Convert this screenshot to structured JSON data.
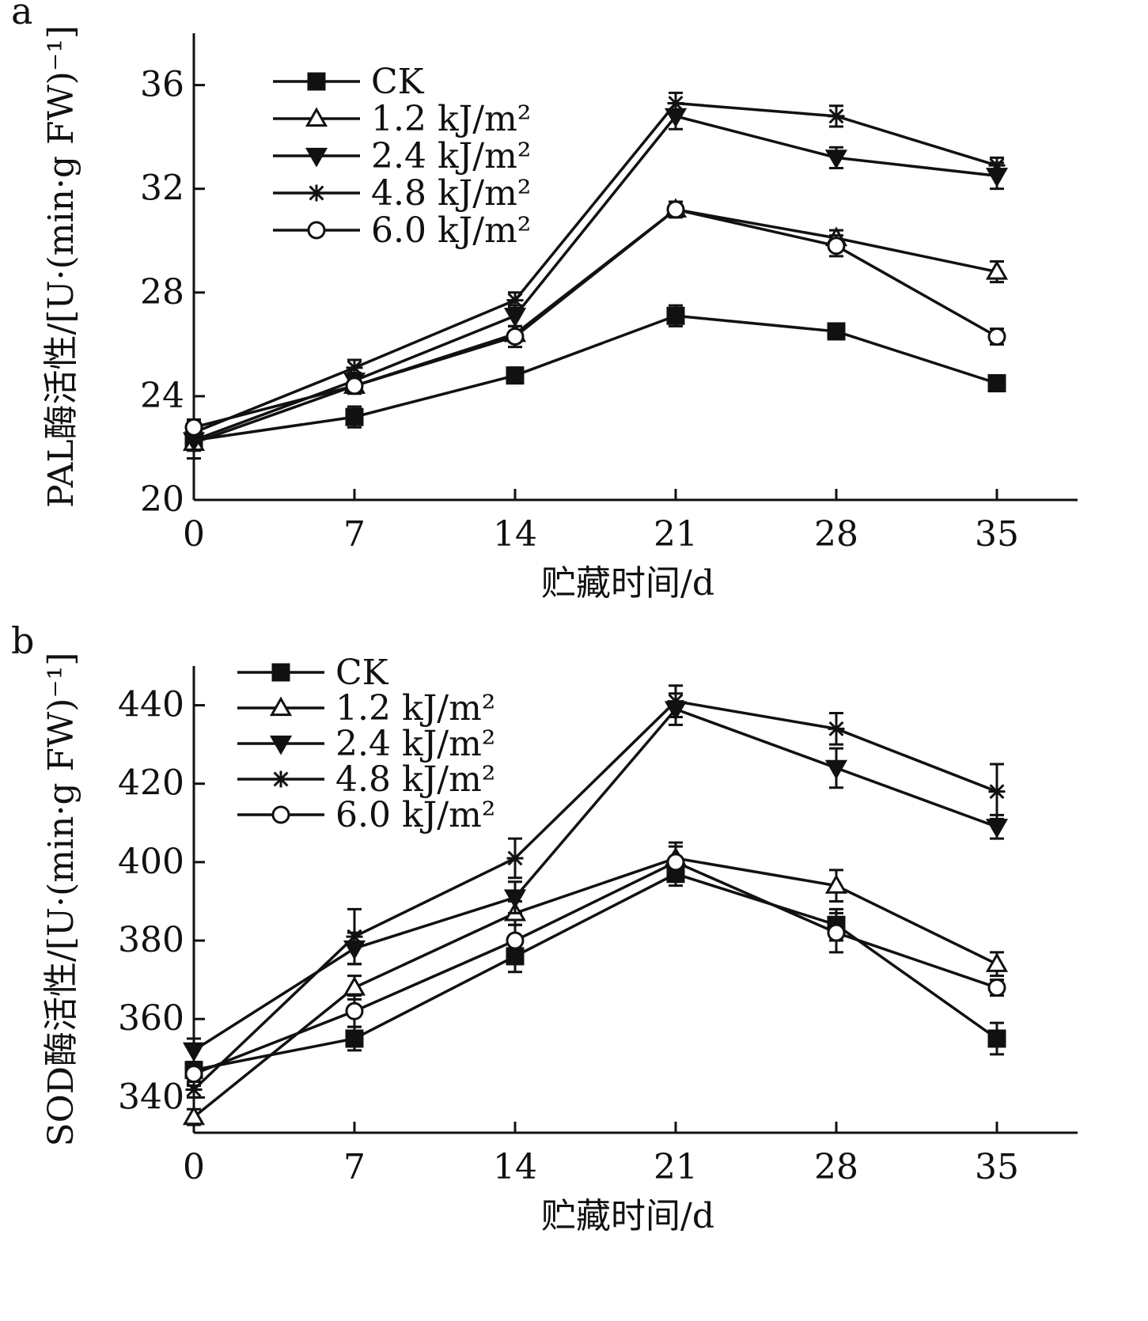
{
  "chart_data": [
    {
      "type": "line",
      "panel_label": "a",
      "xlabel": "贮藏时间/d",
      "ylabel": "PAL酶活性/[U·(min·g FW)⁻¹]",
      "x": [
        0,
        7,
        14,
        21,
        28,
        35
      ],
      "xlim": [
        0,
        38.5
      ],
      "ylim": [
        20,
        38
      ],
      "yticks": [
        20,
        24,
        28,
        32,
        36
      ],
      "grid": false,
      "legend_position": "top-left",
      "series": [
        {
          "name": "CK",
          "marker": "filled-square",
          "values": [
            22.3,
            23.2,
            24.8,
            27.1,
            26.5,
            24.5
          ],
          "errors": [
            0.3,
            0.4,
            0.3,
            0.4,
            0.2,
            0.2
          ]
        },
        {
          "name": "1.2 kJ/m²",
          "marker": "open-triangle",
          "values": [
            22.2,
            24.4,
            26.4,
            31.2,
            30.1,
            28.8
          ],
          "errors": [
            0.3,
            0.3,
            0.3,
            0.3,
            0.3,
            0.4
          ]
        },
        {
          "name": "2.4 kJ/m²",
          "marker": "filled-triangle-down",
          "values": [
            22.3,
            24.6,
            27.1,
            34.8,
            33.2,
            32.5
          ],
          "errors": [
            0.7,
            0.3,
            0.4,
            0.5,
            0.4,
            0.5
          ]
        },
        {
          "name": "4.8 kJ/m²",
          "marker": "star",
          "values": [
            22.6,
            25.1,
            27.7,
            35.3,
            34.8,
            32.9
          ],
          "errors": [
            0.3,
            0.3,
            0.3,
            0.4,
            0.4,
            0.3
          ]
        },
        {
          "name": "6.0 kJ/m²",
          "marker": "open-circle",
          "values": [
            22.8,
            24.4,
            26.3,
            31.2,
            29.8,
            26.3
          ],
          "errors": [
            0.3,
            0.3,
            0.4,
            0.3,
            0.4,
            0.3
          ]
        }
      ]
    },
    {
      "type": "line",
      "panel_label": "b",
      "xlabel": "贮藏时间/d",
      "ylabel": "SOD酶活性/[U·(min·g FW)⁻¹]",
      "x": [
        0,
        7,
        14,
        21,
        28,
        35
      ],
      "xlim": [
        0,
        38.5
      ],
      "ylim": [
        331,
        450
      ],
      "yticks": [
        340,
        360,
        380,
        400,
        420,
        440
      ],
      "grid": false,
      "legend_position": "top-left",
      "series": [
        {
          "name": "CK",
          "marker": "filled-square",
          "values": [
            347,
            355,
            376,
            397,
            384,
            355
          ],
          "errors": [
            2,
            3,
            4,
            3,
            4,
            4
          ]
        },
        {
          "name": "1.2 kJ/m²",
          "marker": "open-triangle",
          "values": [
            335,
            368,
            387,
            401,
            394,
            374
          ],
          "errors": [
            2,
            3,
            3,
            4,
            4,
            3
          ]
        },
        {
          "name": "2.4 kJ/m²",
          "marker": "filled-triangle-down",
          "values": [
            352,
            378,
            391,
            439,
            424,
            409
          ],
          "errors": [
            3,
            4,
            4,
            4,
            5,
            3
          ]
        },
        {
          "name": "4.8 kJ/m²",
          "marker": "star",
          "values": [
            342,
            381,
            401,
            441,
            434,
            418
          ],
          "errors": [
            2,
            7,
            5,
            4,
            4,
            7
          ]
        },
        {
          "name": "6.0 kJ/m²",
          "marker": "open-circle",
          "values": [
            346,
            362,
            380,
            400,
            382,
            368
          ],
          "errors": [
            3,
            4,
            4,
            4,
            5,
            2
          ]
        }
      ]
    }
  ]
}
